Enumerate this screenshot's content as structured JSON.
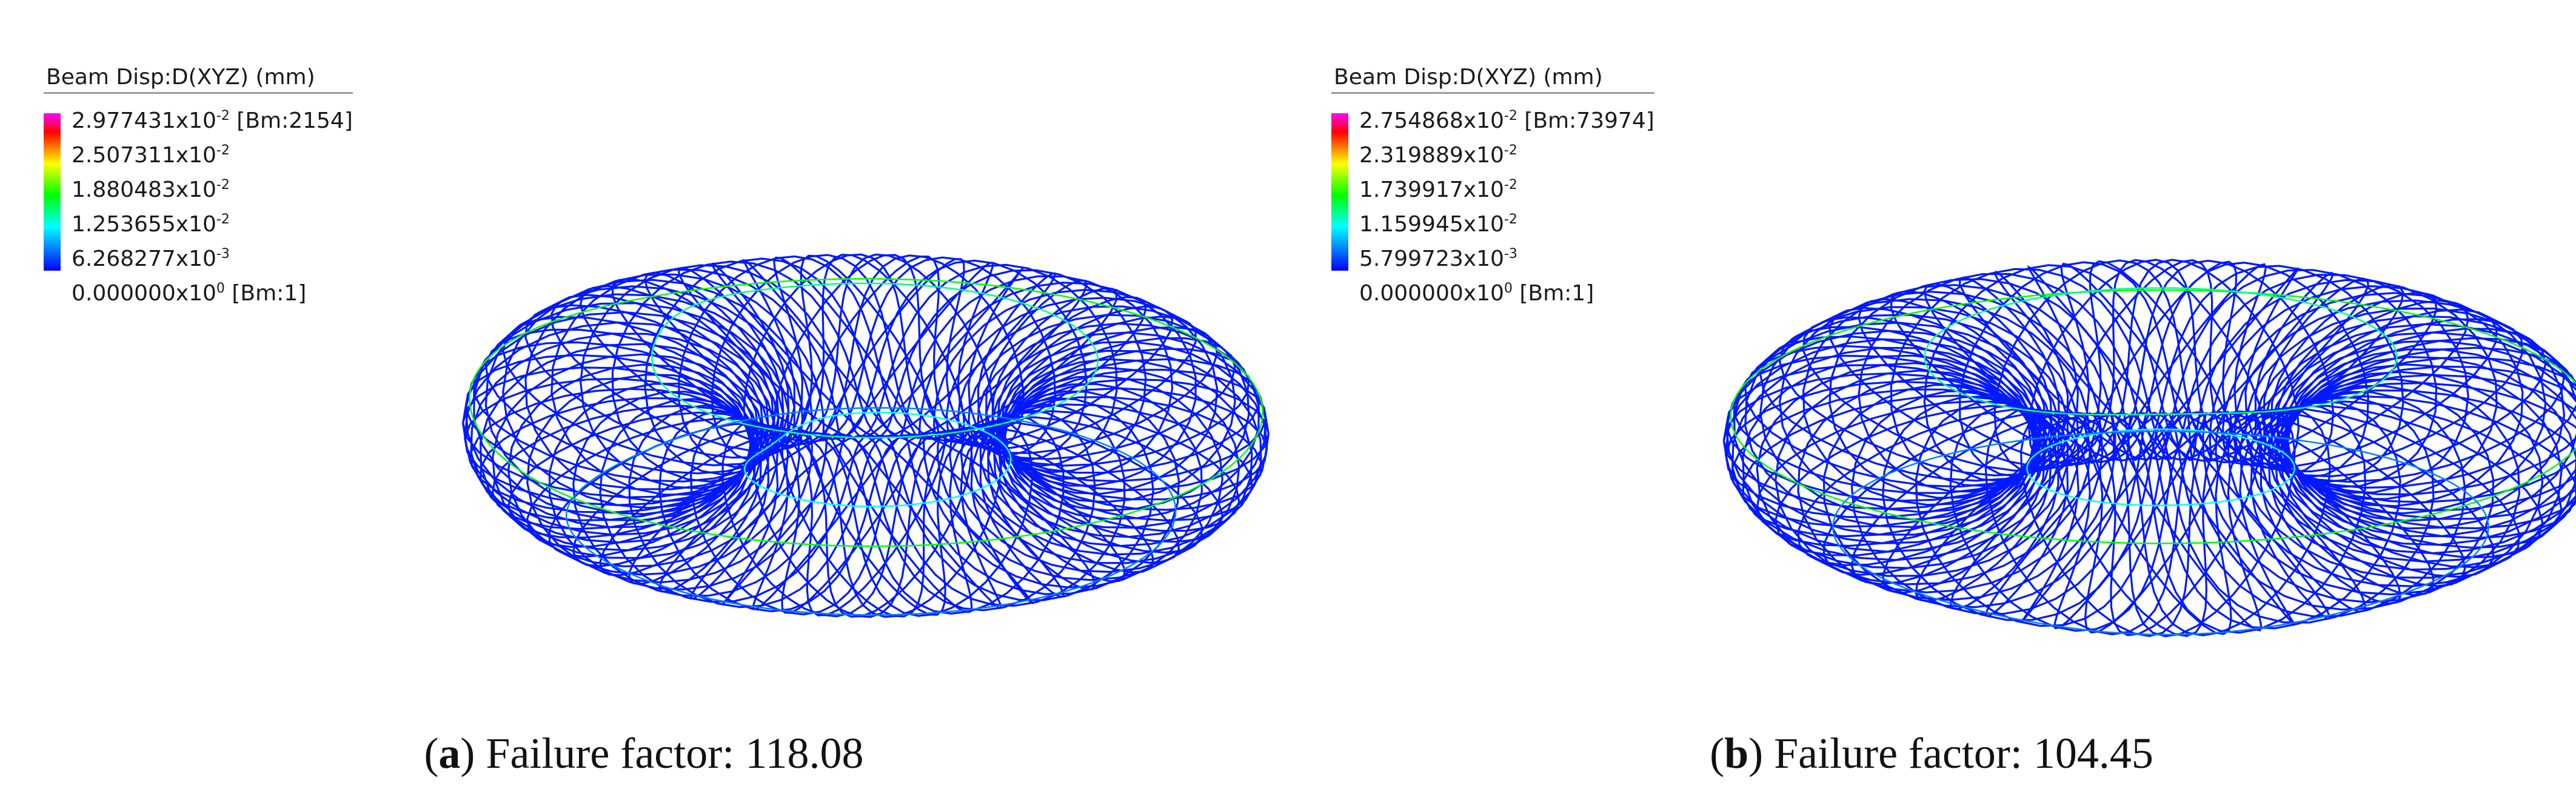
{
  "panels": [
    {
      "legend": {
        "title": "Beam Disp:D(XYZ)  (mm)",
        "max": {
          "mantissa": "2.977431x10",
          "exp": "-2",
          "tag": "[Bm:2154]"
        },
        "levels": [
          {
            "mantissa": "2.507311x10",
            "exp": "-2"
          },
          {
            "mantissa": "1.880483x10",
            "exp": "-2"
          },
          {
            "mantissa": "1.253655x10",
            "exp": "-2"
          },
          {
            "mantissa": "6.268277x10",
            "exp": "-3"
          }
        ],
        "min": {
          "mantissa": "0.000000x10",
          "exp": "0",
          "tag": "[Bm:1]"
        }
      },
      "caption": {
        "letter": "a",
        "text": " Failure factor: 118.08"
      }
    },
    {
      "legend": {
        "title": "Beam Disp:D(XYZ)  (mm)",
        "max": {
          "mantissa": "2.754868x10",
          "exp": "-2",
          "tag": "[Bm:73974]"
        },
        "levels": [
          {
            "mantissa": "2.319889x10",
            "exp": "-2"
          },
          {
            "mantissa": "1.739917x10",
            "exp": "-2"
          },
          {
            "mantissa": "1.159945x10",
            "exp": "-2"
          },
          {
            "mantissa": "5.799723x10",
            "exp": "-3"
          }
        ],
        "min": {
          "mantissa": "0.000000x10",
          "exp": "0",
          "tag": "[Bm:1]"
        }
      },
      "caption": {
        "letter": "b",
        "text": " Failure factor: 104.45"
      }
    }
  ],
  "colors": {
    "scale": [
      "#ff00ff",
      "#ff0000",
      "#ffff00",
      "#00ff00",
      "#00ffff",
      "#0000ff"
    ],
    "text": "#1a1a1a"
  }
}
